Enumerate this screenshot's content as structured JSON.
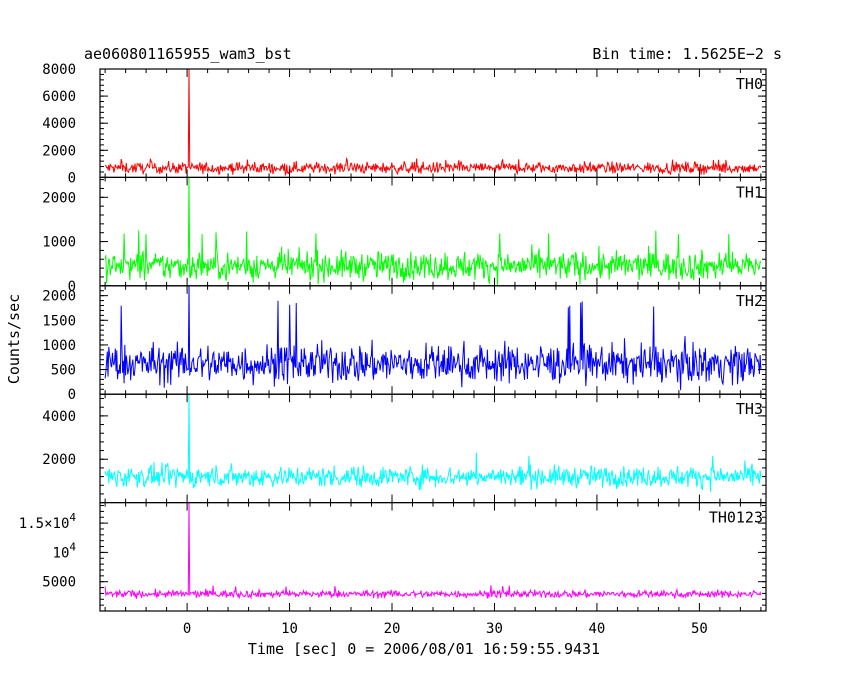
{
  "header": {
    "title": "ae060801165955_wam3_bst",
    "bin_time": "Bin time: 1.5625E−2 s"
  },
  "chart_data": {
    "type": "line",
    "title": "ae060801165955_wam3_bst",
    "xlabel": "Time [sec] 0 = 2006/08/01 16:59:55.9431",
    "ylabel": "Counts/sec",
    "xlim": [
      -8.5,
      56.5
    ],
    "x_ticks": [
      0,
      10,
      20,
      30,
      40,
      50
    ],
    "data_x_range": [
      -8,
      56
    ],
    "burst_time": 0.2,
    "grid": false,
    "panels": [
      {
        "name": "TH0",
        "color": "#ff0000",
        "ylim": [
          0,
          8000
        ],
        "y_ticks": [
          {
            "v": 0,
            "t": "0"
          },
          {
            "v": 2000,
            "t": "2000"
          },
          {
            "v": 4000,
            "t": "4000"
          },
          {
            "v": 6000,
            "t": "6000"
          },
          {
            "v": 8000,
            "t": "8000"
          }
        ],
        "baseline": 700,
        "noise": 300,
        "max": 1400,
        "min": 200,
        "peak": 8000
      },
      {
        "name": "TH1",
        "color": "#00ff00",
        "ylim": [
          0,
          2450
        ],
        "y_ticks": [
          {
            "v": 0,
            "t": "0"
          },
          {
            "v": 1000,
            "t": "1000"
          },
          {
            "v": 2000,
            "t": "2000"
          }
        ],
        "baseline": 450,
        "noise": 230,
        "max": 1280,
        "min": 0,
        "peak": 2450
      },
      {
        "name": "TH2",
        "color": "#0000ff",
        "ylim": [
          0,
          2200
        ],
        "y_ticks": [
          {
            "v": 0,
            "t": "0"
          },
          {
            "v": 500,
            "t": "500"
          },
          {
            "v": 1000,
            "t": "1000"
          },
          {
            "v": 1500,
            "t": "1500"
          },
          {
            "v": 2000,
            "t": "2000"
          }
        ],
        "baseline": 620,
        "noise": 280,
        "max": 1900,
        "min": 50,
        "peak": 2200
      },
      {
        "name": "TH3",
        "color": "#00ffff",
        "ylim": [
          0,
          5000
        ],
        "y_ticks": [
          {
            "v": 2000,
            "t": "2000"
          },
          {
            "v": 4000,
            "t": "4000"
          }
        ],
        "baseline": 1200,
        "noise": 350,
        "max": 2300,
        "min": 200,
        "peak": 5000
      },
      {
        "name": "TH0123",
        "color": "#ff00ff",
        "ylim": [
          0,
          18500
        ],
        "y_ticks": [
          {
            "v": 5000,
            "t": "5000"
          },
          {
            "v": 10000,
            "t": "10",
            "exp": "4"
          },
          {
            "v": 15000,
            "t": "1.5×10",
            "exp": "4"
          }
        ],
        "baseline": 2900,
        "noise": 450,
        "max": 4400,
        "min": 1500,
        "peak": 18500
      }
    ]
  }
}
